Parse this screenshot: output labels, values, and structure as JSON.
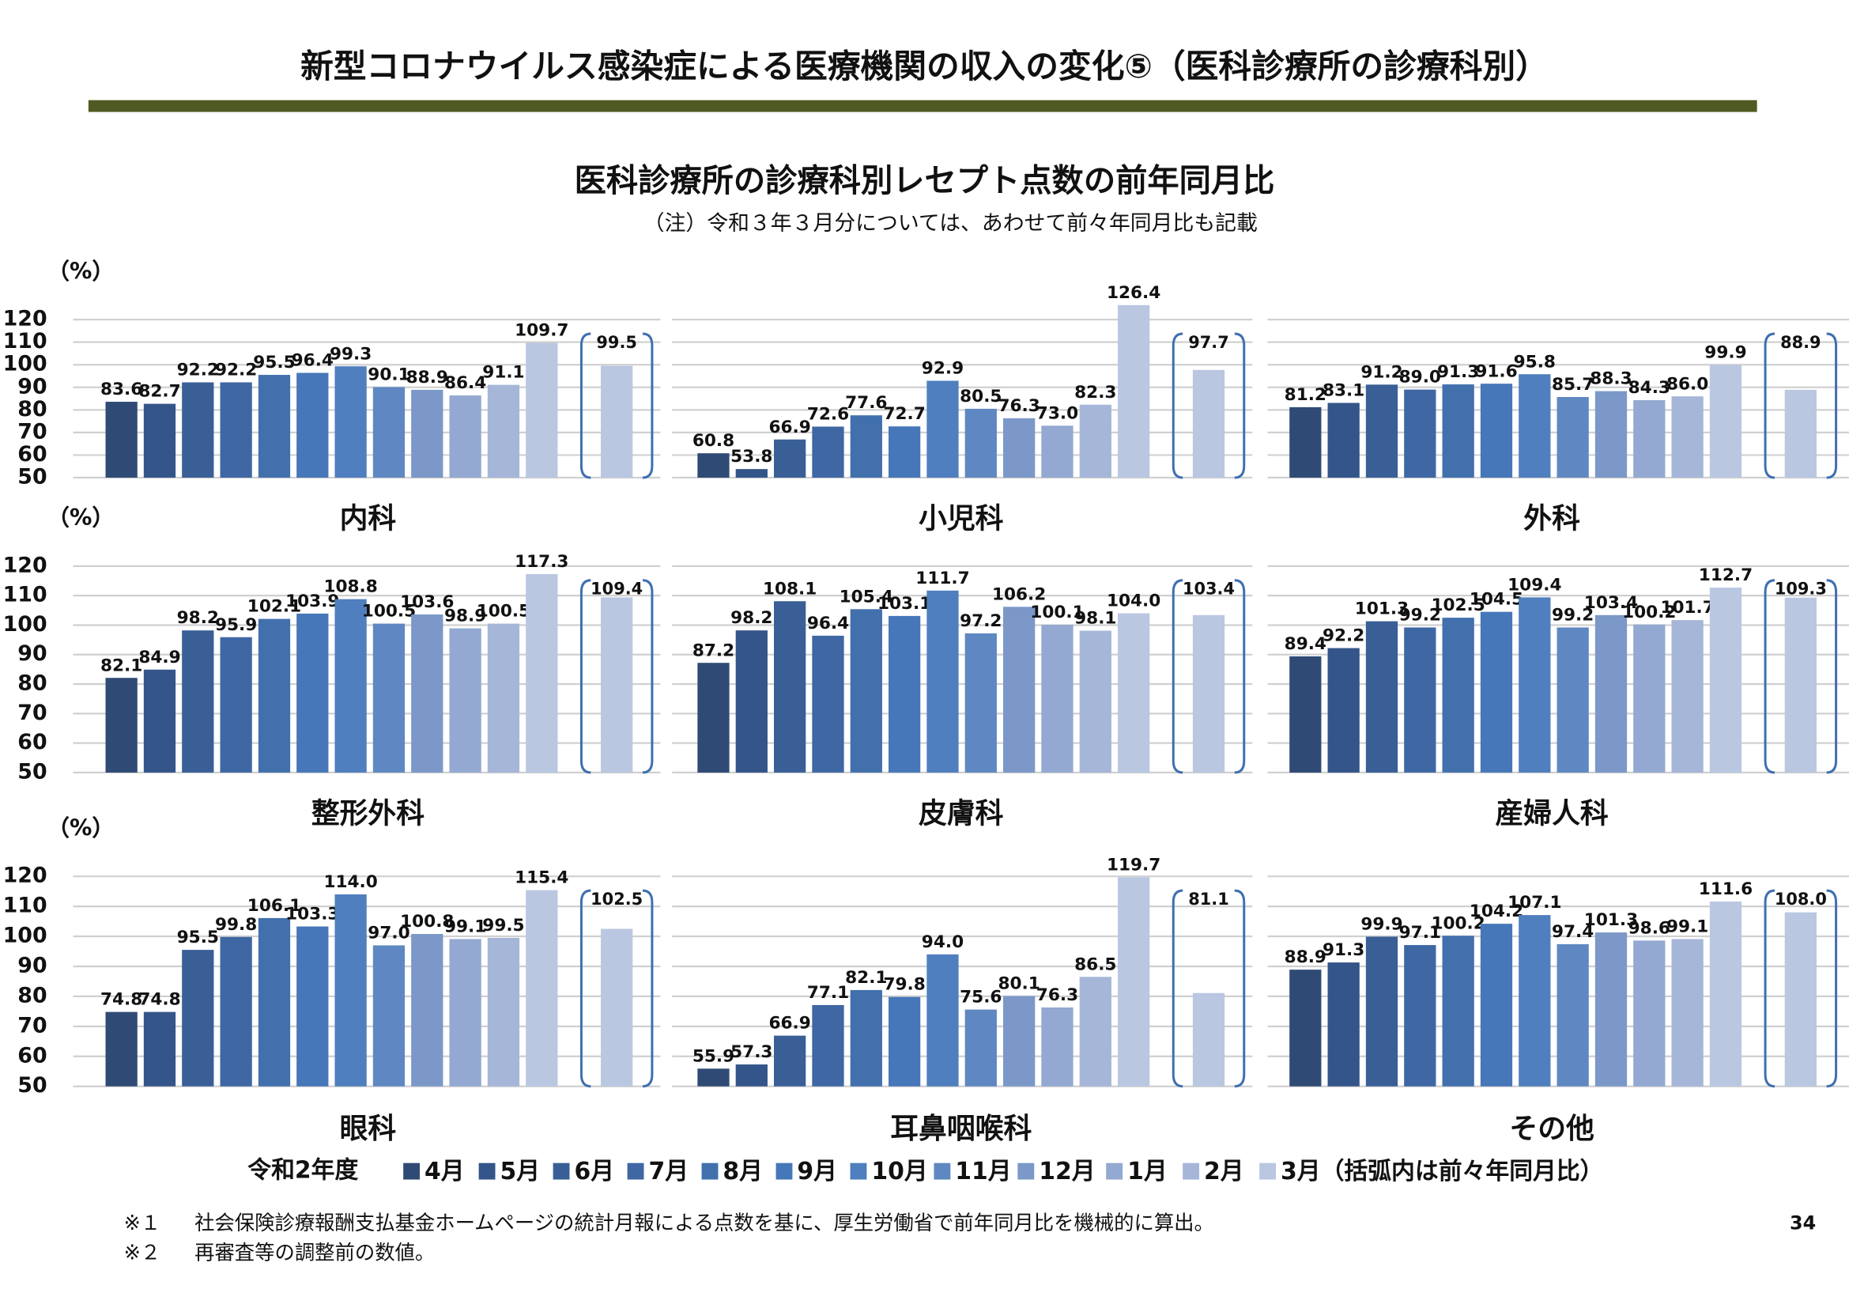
{
  "header": {
    "title": "新型コロナウイルス感染症による医療機関の収入の変化⑤（医科診療所の診療科別）"
  },
  "figure": {
    "title": "医科診療所の診療科別レセプト点数の前年同月比",
    "subtitle": "（注）令和３年３月分については、あわせて前々年同月比も記載"
  },
  "legend": {
    "title": "令和2年度",
    "items": [
      "4月",
      "5月",
      "6月",
      "7月",
      "8月",
      "9月",
      "10月",
      "11月",
      "12月",
      "1月",
      "2月",
      "3月（括弧内は前々年同月比）"
    ],
    "colors": [
      "#2f4b75",
      "#34558a",
      "#3a5f97",
      "#3e67a3",
      "#4270ad",
      "#4677b8",
      "#4f7fbe",
      "#5f88c2",
      "#7b98c8",
      "#93a9d1",
      "#a5b6d8",
      "#b9c7e1"
    ]
  },
  "chart_data": [
    {
      "type": "bar",
      "name": "内科",
      "ylabel": "（%）",
      "ylim": [
        50,
        120
      ],
      "yticks": [
        50,
        60,
        70,
        80,
        90,
        100,
        110,
        120
      ],
      "values": [
        83.6,
        82.7,
        92.2,
        92.2,
        95.5,
        96.4,
        99.3,
        90.1,
        88.9,
        86.4,
        91.1,
        109.7
      ],
      "value_labels": [
        "83.6",
        "82.7",
        "92.2",
        "92.2",
        "95.5",
        "96.4",
        "99.3",
        "90.1",
        "88.9",
        "86.4",
        "91.1",
        "109.7"
      ],
      "two_year_value": 99.5,
      "two_year_label": "99.5"
    },
    {
      "type": "bar",
      "name": "小児科",
      "ylim": [
        50,
        120
      ],
      "yticks": [
        50,
        60,
        70,
        80,
        90,
        100,
        110,
        120
      ],
      "values": [
        60.8,
        53.8,
        66.9,
        72.6,
        77.6,
        72.7,
        92.9,
        80.5,
        76.3,
        73.0,
        82.3,
        126.4
      ],
      "value_labels": [
        "60.8",
        "53.8",
        "66.9",
        "72.6",
        "77.6",
        "72.7",
        "92.9",
        "80.5",
        "76.3",
        "73.0",
        "82.3",
        "126.4"
      ],
      "two_year_value": 97.7,
      "two_year_label": "97.7"
    },
    {
      "type": "bar",
      "name": "外科",
      "ylim": [
        50,
        120
      ],
      "yticks": [
        50,
        60,
        70,
        80,
        90,
        100,
        110,
        120
      ],
      "values": [
        81.2,
        83.1,
        91.2,
        89.0,
        91.3,
        91.6,
        95.8,
        85.7,
        88.3,
        84.3,
        86.0,
        99.9
      ],
      "value_labels": [
        "81.2",
        "83.1",
        "91.2",
        "89.0",
        "91.3",
        "91.6",
        "95.8",
        "85.7",
        "88.3",
        "84.3",
        "86.0",
        "99.9"
      ],
      "two_year_value": 88.9,
      "two_year_label": "88.9"
    },
    {
      "type": "bar",
      "name": "整形外科",
      "ylabel": "（%）",
      "ylim": [
        50,
        120
      ],
      "yticks": [
        50,
        60,
        70,
        80,
        90,
        100,
        110,
        120
      ],
      "values": [
        82.1,
        84.9,
        98.2,
        95.9,
        102.1,
        103.9,
        108.8,
        100.5,
        103.6,
        98.9,
        100.5,
        117.3
      ],
      "value_labels": [
        "82.1",
        "84.9",
        "98.2",
        "95.9",
        "102.1",
        "103.9",
        "108.8",
        "100.5",
        "103.6",
        "98.9",
        "100.5",
        "117.3"
      ],
      "two_year_value": 109.4,
      "two_year_label": "109.4"
    },
    {
      "type": "bar",
      "name": "皮膚科",
      "ylim": [
        50,
        120
      ],
      "yticks": [
        50,
        60,
        70,
        80,
        90,
        100,
        110,
        120
      ],
      "values": [
        87.2,
        98.2,
        108.1,
        96.4,
        105.4,
        103.1,
        111.7,
        97.2,
        106.2,
        100.1,
        98.1,
        104.0
      ],
      "value_labels": [
        "87.2",
        "98.2",
        "108.1",
        "96.4",
        "105.4",
        "103.1",
        "111.7",
        "97.2",
        "106.2",
        "100.1",
        "98.1",
        "104.0"
      ],
      "two_year_value": 103.4,
      "two_year_label": "103.4"
    },
    {
      "type": "bar",
      "name": "産婦人科",
      "ylim": [
        50,
        120
      ],
      "yticks": [
        50,
        60,
        70,
        80,
        90,
        100,
        110,
        120
      ],
      "values": [
        89.4,
        92.2,
        101.3,
        99.2,
        102.5,
        104.5,
        109.4,
        99.2,
        103.4,
        100.2,
        101.7,
        112.7
      ],
      "value_labels": [
        "89.4",
        "92.2",
        "101.3",
        "99.2",
        "102.5",
        "104.5",
        "109.4",
        "99.2",
        "103.4",
        "100.2",
        "101.7",
        "112.7"
      ],
      "two_year_value": 109.3,
      "two_year_label": "109.3"
    },
    {
      "type": "bar",
      "name": "眼科",
      "ylabel": "（%）",
      "ylim": [
        50,
        120
      ],
      "yticks": [
        50,
        60,
        70,
        80,
        90,
        100,
        110,
        120
      ],
      "values": [
        74.8,
        74.8,
        95.5,
        99.8,
        106.1,
        103.3,
        114.0,
        97.0,
        100.8,
        99.1,
        99.5,
        115.4
      ],
      "value_labels": [
        "74.8",
        "74.8",
        "95.5",
        "99.8",
        "106.1",
        "103.3",
        "114.0",
        "97.0",
        "100.8",
        "99.1",
        "99.5",
        "115.4"
      ],
      "two_year_value": 102.5,
      "two_year_label": "102.5"
    },
    {
      "type": "bar",
      "name": "耳鼻咽喉科",
      "ylim": [
        50,
        120
      ],
      "yticks": [
        50,
        60,
        70,
        80,
        90,
        100,
        110,
        120
      ],
      "values": [
        55.9,
        57.3,
        66.9,
        77.1,
        82.1,
        79.8,
        94.0,
        75.6,
        80.1,
        76.3,
        86.5,
        119.7
      ],
      "value_labels": [
        "55.9",
        "57.3",
        "66.9",
        "77.1",
        "82.1",
        "79.8",
        "94.0",
        "75.6",
        "80.1",
        "76.3",
        "86.5",
        "119.7"
      ],
      "two_year_value": 81.1,
      "two_year_label": "81.1"
    },
    {
      "type": "bar",
      "name": "その他",
      "ylim": [
        50,
        120
      ],
      "yticks": [
        50,
        60,
        70,
        80,
        90,
        100,
        110,
        120
      ],
      "values": [
        88.9,
        91.3,
        99.9,
        97.1,
        100.2,
        104.2,
        107.1,
        97.4,
        101.3,
        98.6,
        99.1,
        111.6
      ],
      "value_labels": [
        "88.9",
        "91.3",
        "99.9",
        "97.1",
        "100.2",
        "104.2",
        "107.1",
        "97.4",
        "101.3",
        "98.6",
        "99.1",
        "111.6"
      ],
      "two_year_value": 108.0,
      "two_year_label": "108.0"
    }
  ],
  "footnotes": [
    {
      "mark": "※１",
      "text": "社会保険診療報酬支払基金ホームページの統計月報による点数を基に、厚生労働省で前年同月比を機械的に算出。"
    },
    {
      "mark": "※２",
      "text": "再審査等の調整前の数値。"
    }
  ],
  "page_number": "34"
}
